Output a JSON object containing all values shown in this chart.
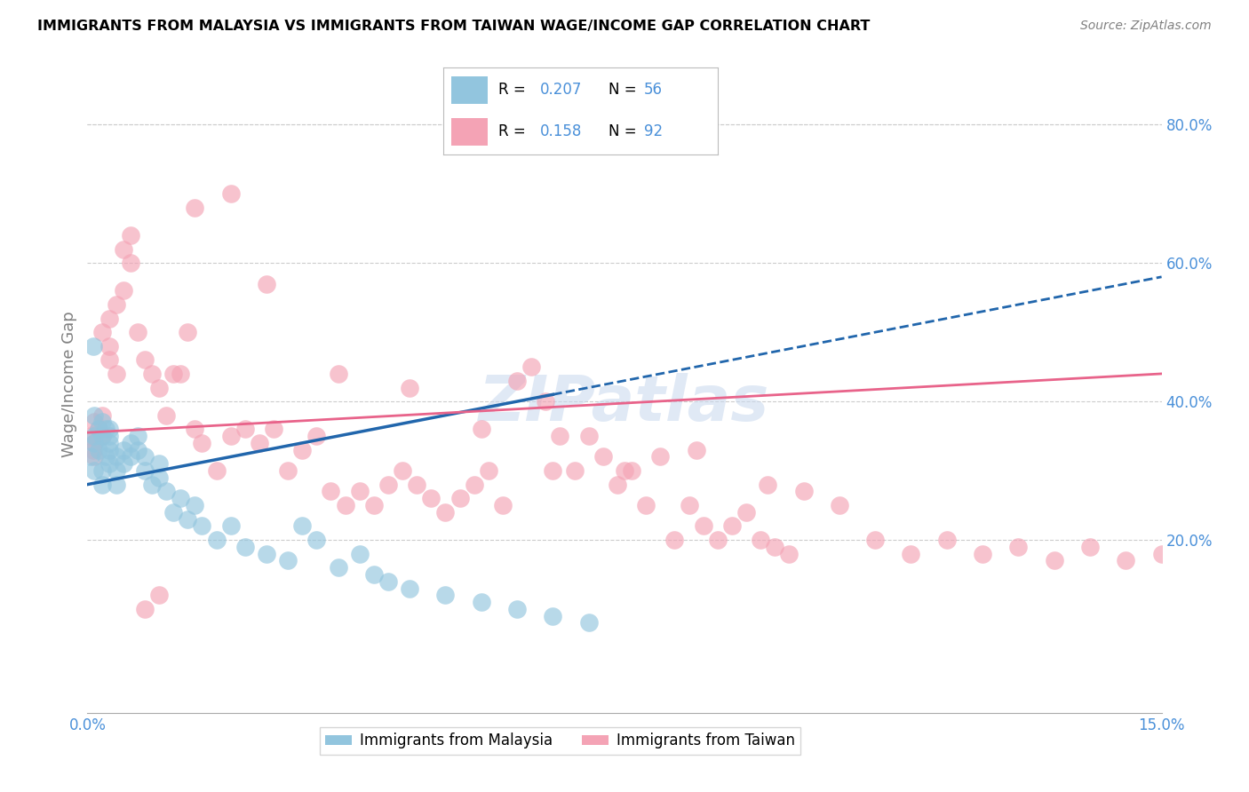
{
  "title": "IMMIGRANTS FROM MALAYSIA VS IMMIGRANTS FROM TAIWAN WAGE/INCOME GAP CORRELATION CHART",
  "source": "Source: ZipAtlas.com",
  "ylabel": "Wage/Income Gap",
  "watermark": "ZIPatlas",
  "xlim": [
    0.0,
    0.15
  ],
  "ylim": [
    -0.05,
    0.9
  ],
  "xticks": [
    0.0,
    0.05,
    0.1,
    0.15
  ],
  "xticklabels": [
    "0.0%",
    "",
    "",
    "15.0%"
  ],
  "yticks_right": [
    0.2,
    0.4,
    0.6,
    0.8
  ],
  "ytick_right_labels": [
    "20.0%",
    "40.0%",
    "60.0%",
    "80.0%"
  ],
  "malaysia_x": [
    0.0005,
    0.0008,
    0.001,
    0.001,
    0.001,
    0.001,
    0.0015,
    0.0015,
    0.002,
    0.002,
    0.002,
    0.002,
    0.0025,
    0.0025,
    0.003,
    0.003,
    0.003,
    0.003,
    0.003,
    0.004,
    0.004,
    0.004,
    0.005,
    0.005,
    0.006,
    0.006,
    0.007,
    0.007,
    0.008,
    0.008,
    0.009,
    0.01,
    0.01,
    0.011,
    0.012,
    0.013,
    0.014,
    0.015,
    0.016,
    0.018,
    0.02,
    0.022,
    0.025,
    0.028,
    0.03,
    0.032,
    0.035,
    0.038,
    0.04,
    0.042,
    0.045,
    0.05,
    0.055,
    0.06,
    0.065,
    0.07
  ],
  "malaysia_y": [
    0.32,
    0.48,
    0.35,
    0.34,
    0.38,
    0.3,
    0.36,
    0.33,
    0.35,
    0.37,
    0.3,
    0.28,
    0.36,
    0.32,
    0.34,
    0.36,
    0.33,
    0.31,
    0.35,
    0.32,
    0.3,
    0.28,
    0.33,
    0.31,
    0.34,
    0.32,
    0.35,
    0.33,
    0.32,
    0.3,
    0.28,
    0.31,
    0.29,
    0.27,
    0.24,
    0.26,
    0.23,
    0.25,
    0.22,
    0.2,
    0.22,
    0.19,
    0.18,
    0.17,
    0.22,
    0.2,
    0.16,
    0.18,
    0.15,
    0.14,
    0.13,
    0.12,
    0.11,
    0.1,
    0.09,
    0.08
  ],
  "taiwan_x": [
    0.0005,
    0.0008,
    0.001,
    0.001,
    0.001,
    0.0015,
    0.002,
    0.002,
    0.002,
    0.003,
    0.003,
    0.003,
    0.004,
    0.004,
    0.005,
    0.005,
    0.006,
    0.006,
    0.007,
    0.008,
    0.009,
    0.01,
    0.011,
    0.012,
    0.013,
    0.014,
    0.015,
    0.016,
    0.018,
    0.02,
    0.022,
    0.024,
    0.026,
    0.028,
    0.03,
    0.032,
    0.034,
    0.036,
    0.038,
    0.04,
    0.042,
    0.044,
    0.046,
    0.048,
    0.05,
    0.052,
    0.054,
    0.056,
    0.058,
    0.06,
    0.062,
    0.064,
    0.066,
    0.068,
    0.07,
    0.072,
    0.074,
    0.076,
    0.078,
    0.08,
    0.082,
    0.084,
    0.086,
    0.088,
    0.09,
    0.092,
    0.094,
    0.096,
    0.098,
    0.1,
    0.105,
    0.11,
    0.115,
    0.12,
    0.125,
    0.13,
    0.135,
    0.14,
    0.145,
    0.15,
    0.025,
    0.035,
    0.045,
    0.055,
    0.065,
    0.075,
    0.085,
    0.095,
    0.015,
    0.02,
    0.01,
    0.008
  ],
  "taiwan_y": [
    0.35,
    0.33,
    0.37,
    0.34,
    0.32,
    0.36,
    0.38,
    0.35,
    0.5,
    0.46,
    0.48,
    0.52,
    0.44,
    0.54,
    0.56,
    0.62,
    0.6,
    0.64,
    0.5,
    0.46,
    0.44,
    0.42,
    0.38,
    0.44,
    0.44,
    0.5,
    0.36,
    0.34,
    0.3,
    0.35,
    0.36,
    0.34,
    0.36,
    0.3,
    0.33,
    0.35,
    0.27,
    0.25,
    0.27,
    0.25,
    0.28,
    0.3,
    0.28,
    0.26,
    0.24,
    0.26,
    0.28,
    0.3,
    0.25,
    0.43,
    0.45,
    0.4,
    0.35,
    0.3,
    0.35,
    0.32,
    0.28,
    0.3,
    0.25,
    0.32,
    0.2,
    0.25,
    0.22,
    0.2,
    0.22,
    0.24,
    0.2,
    0.19,
    0.18,
    0.27,
    0.25,
    0.2,
    0.18,
    0.2,
    0.18,
    0.19,
    0.17,
    0.19,
    0.17,
    0.18,
    0.57,
    0.44,
    0.42,
    0.36,
    0.3,
    0.3,
    0.33,
    0.28,
    0.68,
    0.7,
    0.12,
    0.1
  ],
  "malaysia_color": "#92c5de",
  "taiwan_color": "#f4a3b5",
  "malaysia_line_color": "#2166ac",
  "taiwan_line_color": "#e8638a",
  "background_color": "#ffffff",
  "grid_color": "#cccccc",
  "axis_color": "#4a90d9",
  "malaysia_trend_x0": 0.0,
  "malaysia_trend_y0": 0.28,
  "malaysia_trend_x1": 0.1,
  "malaysia_trend_y1": 0.48,
  "taiwan_trend_x0": 0.0,
  "taiwan_trend_y0": 0.355,
  "taiwan_trend_x1": 0.15,
  "taiwan_trend_y1": 0.44
}
